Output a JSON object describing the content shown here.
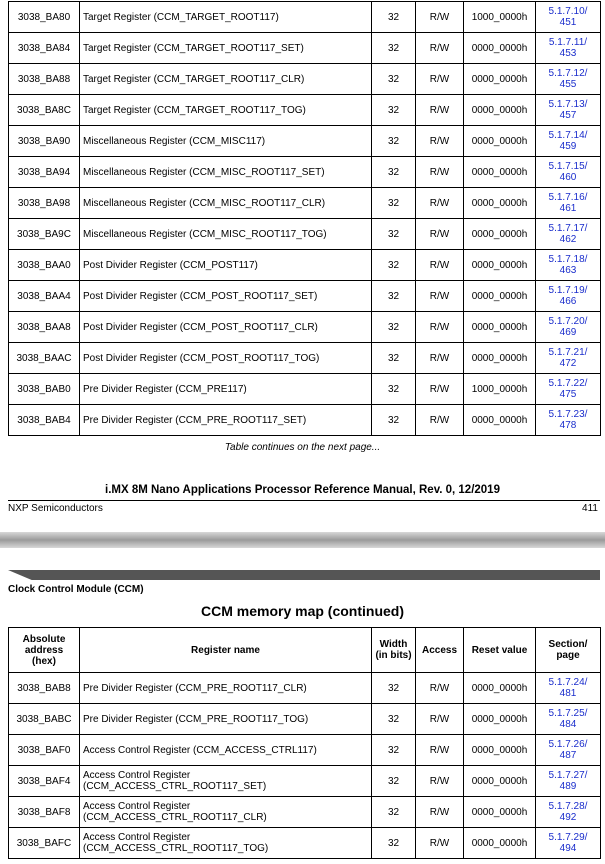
{
  "top_table": {
    "rows": [
      {
        "address": "3038_BA80",
        "name": "Target Register (CCM_TARGET_ROOT117)",
        "width": "32",
        "access": "R/W",
        "reset": "1000_0000h",
        "section": "5.1.7.10/",
        "page": "451"
      },
      {
        "address": "3038_BA84",
        "name": "Target Register (CCM_TARGET_ROOT117_SET)",
        "width": "32",
        "access": "R/W",
        "reset": "0000_0000h",
        "section": "5.1.7.11/",
        "page": "453"
      },
      {
        "address": "3038_BA88",
        "name": "Target Register (CCM_TARGET_ROOT117_CLR)",
        "width": "32",
        "access": "R/W",
        "reset": "0000_0000h",
        "section": "5.1.7.12/",
        "page": "455"
      },
      {
        "address": "3038_BA8C",
        "name": "Target Register (CCM_TARGET_ROOT117_TOG)",
        "width": "32",
        "access": "R/W",
        "reset": "0000_0000h",
        "section": "5.1.7.13/",
        "page": "457"
      },
      {
        "address": "3038_BA90",
        "name": "Miscellaneous Register (CCM_MISC117)",
        "width": "32",
        "access": "R/W",
        "reset": "0000_0000h",
        "section": "5.1.7.14/",
        "page": "459"
      },
      {
        "address": "3038_BA94",
        "name": "Miscellaneous Register (CCM_MISC_ROOT117_SET)",
        "width": "32",
        "access": "R/W",
        "reset": "0000_0000h",
        "section": "5.1.7.15/",
        "page": "460"
      },
      {
        "address": "3038_BA98",
        "name": "Miscellaneous Register (CCM_MISC_ROOT117_CLR)",
        "width": "32",
        "access": "R/W",
        "reset": "0000_0000h",
        "section": "5.1.7.16/",
        "page": "461"
      },
      {
        "address": "3038_BA9C",
        "name": "Miscellaneous Register (CCM_MISC_ROOT117_TOG)",
        "width": "32",
        "access": "R/W",
        "reset": "0000_0000h",
        "section": "5.1.7.17/",
        "page": "462"
      },
      {
        "address": "3038_BAA0",
        "name": "Post Divider Register (CCM_POST117)",
        "width": "32",
        "access": "R/W",
        "reset": "0000_0000h",
        "section": "5.1.7.18/",
        "page": "463"
      },
      {
        "address": "3038_BAA4",
        "name": "Post Divider Register (CCM_POST_ROOT117_SET)",
        "width": "32",
        "access": "R/W",
        "reset": "0000_0000h",
        "section": "5.1.7.19/",
        "page": "466"
      },
      {
        "address": "3038_BAA8",
        "name": "Post Divider Register (CCM_POST_ROOT117_CLR)",
        "width": "32",
        "access": "R/W",
        "reset": "0000_0000h",
        "section": "5.1.7.20/",
        "page": "469"
      },
      {
        "address": "3038_BAAC",
        "name": "Post Divider Register (CCM_POST_ROOT117_TOG)",
        "width": "32",
        "access": "R/W",
        "reset": "0000_0000h",
        "section": "5.1.7.21/",
        "page": "472"
      },
      {
        "address": "3038_BAB0",
        "name": "Pre Divider Register (CCM_PRE117)",
        "width": "32",
        "access": "R/W",
        "reset": "1000_0000h",
        "section": "5.1.7.22/",
        "page": "475"
      },
      {
        "address": "3038_BAB4",
        "name": "Pre Divider Register (CCM_PRE_ROOT117_SET)",
        "width": "32",
        "access": "R/W",
        "reset": "0000_0000h",
        "section": "5.1.7.23/",
        "page": "478"
      }
    ]
  },
  "continued_note": "Table continues on the next page...",
  "footer": {
    "manual": "i.MX 8M Nano Applications Processor Reference Manual, Rev. 0, 12/2019",
    "company": "NXP Semiconductors",
    "page_number": "411"
  },
  "next_page": {
    "chapter": "Clock Control Module (CCM)",
    "title": "CCM memory map (continued)",
    "table": {
      "headers": [
        "Absolute address (hex)",
        "Register name",
        "Width (in bits)",
        "Access",
        "Reset value",
        "Section/ page"
      ],
      "rows": [
        {
          "address": "3038_BAB8",
          "name": "Pre Divider Register (CCM_PRE_ROOT117_CLR)",
          "width": "32",
          "access": "R/W",
          "reset": "0000_0000h",
          "section": "5.1.7.24/",
          "page": "481"
        },
        {
          "address": "3038_BABC",
          "name": "Pre Divider Register (CCM_PRE_ROOT117_TOG)",
          "width": "32",
          "access": "R/W",
          "reset": "0000_0000h",
          "section": "5.1.7.25/",
          "page": "484"
        },
        {
          "address": "3038_BAF0",
          "name": "Access Control Register (CCM_ACCESS_CTRL117)",
          "width": "32",
          "access": "R/W",
          "reset": "0000_0000h",
          "section": "5.1.7.26/",
          "page": "487"
        },
        {
          "address": "3038_BAF4",
          "name": [
            "Access Control Register",
            "(CCM_ACCESS_CTRL_ROOT117_SET)"
          ],
          "width": "32",
          "access": "R/W",
          "reset": "0000_0000h",
          "section": "5.1.7.27/",
          "page": "489"
        },
        {
          "address": "3038_BAF8",
          "name": [
            "Access Control Register",
            "(CCM_ACCESS_CTRL_ROOT117_CLR)"
          ],
          "width": "32",
          "access": "R/W",
          "reset": "0000_0000h",
          "section": "5.1.7.28/",
          "page": "492"
        },
        {
          "address": "3038_BAFC",
          "name": [
            "Access Control Register",
            "(CCM_ACCESS_CTRL_ROOT117_TOG)"
          ],
          "width": "32",
          "access": "R/W",
          "reset": "0000_0000h",
          "section": "5.1.7.29/",
          "page": "494"
        }
      ]
    }
  }
}
